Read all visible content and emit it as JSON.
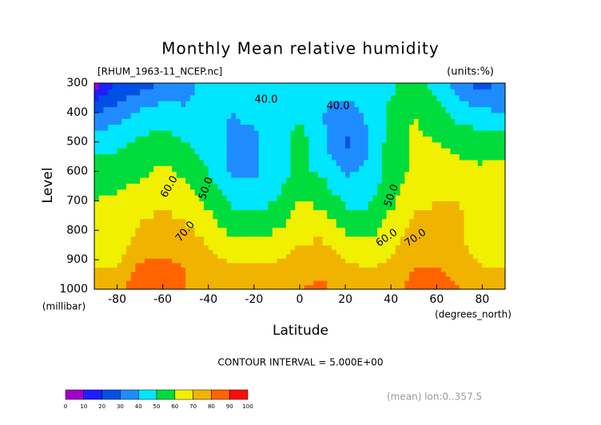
{
  "chart_data": {
    "type": "contour",
    "title": "Monthly Mean relative humidity",
    "subtitle": "[RHUM_1963-11_NCEP.nc]",
    "units": "(units:%)",
    "x_label": "Latitude",
    "x_units": "(degrees_north)",
    "y_label": "Level",
    "y_units": "(millibar)",
    "footer": "CONTOUR INTERVAL = 5.000E+00",
    "note": "(mean) lon:0..357.5",
    "x": [
      -90,
      -80,
      -70,
      -60,
      -50,
      -40,
      -30,
      -20,
      -10,
      0,
      10,
      20,
      30,
      40,
      50,
      60,
      70,
      80,
      90
    ],
    "y": [
      1000,
      925,
      850,
      700,
      600,
      500,
      400,
      300
    ],
    "z": [
      [
        70,
        75,
        90,
        85,
        80,
        80,
        75,
        75,
        78,
        80,
        82,
        75,
        75,
        75,
        85,
        85,
        80,
        75,
        75
      ],
      [
        70,
        70,
        82,
        82,
        80,
        75,
        72,
        72,
        72,
        75,
        78,
        72,
        70,
        72,
        80,
        80,
        75,
        70,
        70
      ],
      [
        65,
        65,
        75,
        78,
        75,
        70,
        62,
        62,
        65,
        70,
        72,
        65,
        62,
        68,
        75,
        75,
        72,
        65,
        70
      ],
      [
        60,
        62,
        65,
        68,
        65,
        58,
        48,
        45,
        50,
        60,
        58,
        48,
        48,
        58,
        68,
        70,
        70,
        68,
        70
      ],
      [
        58,
        55,
        58,
        62,
        58,
        50,
        38,
        38,
        45,
        52,
        48,
        38,
        42,
        55,
        62,
        65,
        62,
        62,
        65
      ],
      [
        45,
        48,
        52,
        55,
        50,
        45,
        38,
        38,
        45,
        55,
        42,
        28,
        38,
        55,
        62,
        60,
        58,
        55,
        55
      ],
      [
        30,
        35,
        42,
        45,
        42,
        42,
        40,
        42,
        45,
        48,
        40,
        35,
        42,
        52,
        60,
        55,
        45,
        42,
        40
      ],
      [
        5,
        20,
        25,
        30,
        35,
        45,
        45,
        45,
        45,
        45,
        45,
        45,
        48,
        48,
        55,
        45,
        35,
        25,
        35
      ]
    ],
    "xlim": [
      -90,
      90
    ],
    "xticks": [
      -80,
      -60,
      -40,
      -20,
      0,
      20,
      40,
      60,
      80
    ],
    "ylim": [
      1000,
      300
    ],
    "yticks": [
      1000,
      900,
      800,
      700,
      600,
      500,
      400,
      300
    ],
    "levels": [
      0,
      10,
      20,
      30,
      40,
      50,
      60,
      70,
      80,
      90,
      100
    ],
    "colors": [
      "#a000c8",
      "#1e1eff",
      "#0050e6",
      "#1e8cff",
      "#00e6ff",
      "#00dc3c",
      "#f0f000",
      "#f0b400",
      "#ff6400",
      "#ff0a0a"
    ],
    "contour_labels": [
      {
        "value": 40,
        "label": "40.0"
      },
      {
        "value": 40,
        "label": "40.0"
      },
      {
        "value": 50,
        "label": "50.0"
      },
      {
        "value": 60,
        "label": "60.0"
      },
      {
        "value": 70,
        "label": "70.0"
      },
      {
        "value": 50,
        "label": "50.0"
      },
      {
        "value": 60,
        "label": "60.0"
      },
      {
        "value": 70,
        "label": "70.0"
      }
    ]
  }
}
